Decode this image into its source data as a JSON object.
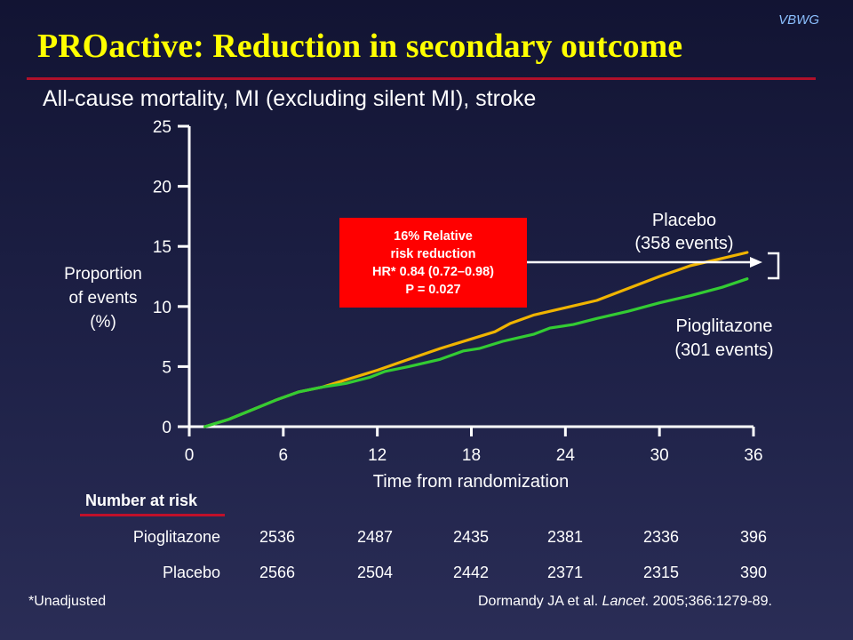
{
  "brand": "VBWG",
  "title": "PROactive: Reduction in secondary outcome",
  "subtitle": "All-cause mortality, MI (excluding silent MI), stroke",
  "chart_data": {
    "type": "line",
    "xlabel": "Time from randomization",
    "ylabel_lines": [
      "Proportion",
      "of events",
      "(%)"
    ],
    "xlim": [
      0,
      36
    ],
    "ylim": [
      0,
      25
    ],
    "xticks": [
      0,
      6,
      12,
      18,
      24,
      30,
      36
    ],
    "yticks": [
      0,
      5,
      10,
      15,
      20,
      25
    ],
    "series": [
      {
        "name": "Placebo",
        "color": "#f0b400",
        "points": [
          [
            1,
            0
          ],
          [
            2.5,
            0.6
          ],
          [
            4,
            1.4
          ],
          [
            5.5,
            2.2
          ],
          [
            7,
            2.9
          ],
          [
            8.5,
            3.3
          ],
          [
            10,
            3.9
          ],
          [
            12,
            4.7
          ],
          [
            14,
            5.6
          ],
          [
            16,
            6.5
          ],
          [
            18,
            7.3
          ],
          [
            19.5,
            7.9
          ],
          [
            20.5,
            8.6
          ],
          [
            22,
            9.3
          ],
          [
            24,
            9.9
          ],
          [
            26,
            10.5
          ],
          [
            28,
            11.5
          ],
          [
            30,
            12.5
          ],
          [
            32,
            13.4
          ],
          [
            34,
            14
          ],
          [
            35.6,
            14.5
          ]
        ]
      },
      {
        "name": "Pioglitazone",
        "color": "#33cc33",
        "points": [
          [
            1,
            0
          ],
          [
            2.5,
            0.6
          ],
          [
            4,
            1.4
          ],
          [
            5.5,
            2.2
          ],
          [
            7,
            2.9
          ],
          [
            8.5,
            3.3
          ],
          [
            10,
            3.6
          ],
          [
            11.5,
            4.1
          ],
          [
            12.5,
            4.6
          ],
          [
            14,
            5.0
          ],
          [
            16,
            5.6
          ],
          [
            17.5,
            6.3
          ],
          [
            18.5,
            6.5
          ],
          [
            20,
            7.1
          ],
          [
            22,
            7.7
          ],
          [
            23,
            8.2
          ],
          [
            24.5,
            8.5
          ],
          [
            26,
            9.0
          ],
          [
            28,
            9.6
          ],
          [
            30,
            10.3
          ],
          [
            32,
            10.9
          ],
          [
            34,
            11.6
          ],
          [
            35.6,
            12.3
          ]
        ]
      }
    ],
    "annotations": {
      "placebo_label": [
        "Placebo",
        "(358 events)"
      ],
      "pioglitazone_label": [
        "Pioglitazone",
        "(301 events)"
      ],
      "callout": [
        "16% Relative",
        "risk reduction",
        "HR* 0.84 (0.72–0.98)",
        "P = 0.027"
      ]
    },
    "callout_color": "#ff0000"
  },
  "risk_table": {
    "header": "Number at risk",
    "rows": [
      {
        "label": "Pioglitazone",
        "values": [
          "2536",
          "2487",
          "2435",
          "2381",
          "2336",
          "396"
        ]
      },
      {
        "label": "Placebo",
        "values": [
          "2566",
          "2504",
          "2442",
          "2371",
          "2315",
          "390"
        ]
      }
    ]
  },
  "footnote": "*Unadjusted",
  "citation": {
    "authors": "Dormandy JA et al. ",
    "journal": "Lancet",
    "details": ". 2005;366:1279-89."
  }
}
